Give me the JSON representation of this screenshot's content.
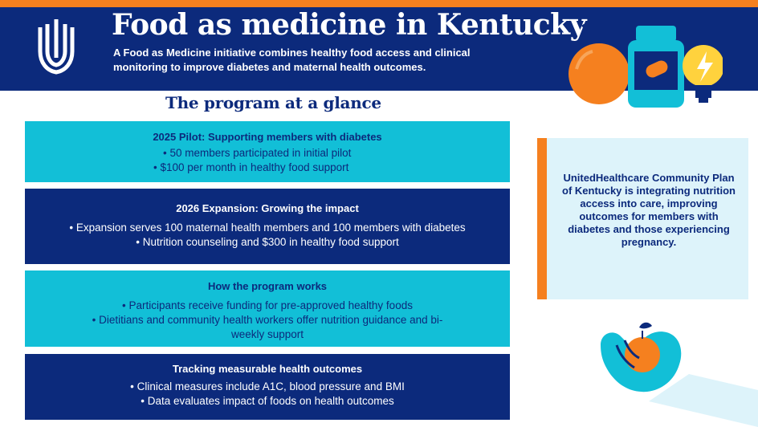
{
  "header": {
    "title": "Food as medicine in Kentucky",
    "subtitle": "A Food as Medicine initiative combines healthy food access and clinical monitoring to improve diabetes and maternal health outcomes.",
    "logo_icon": "uhc-logo-icon"
  },
  "section": {
    "heading": "The program at a glance"
  },
  "cards": [
    {
      "title": "2025 Pilot: Supporting members with diabetes",
      "bullets": [
        "50 members participated in initial pilot",
        "$100 per month in healthy food support"
      ]
    },
    {
      "title": "2026 Expansion: Growing the impact",
      "bullets": [
        "Expansion serves 100 maternal health members and 100 members with diabetes",
        "Nutrition counseling and $300 in healthy food support"
      ]
    },
    {
      "title": "How the program works",
      "bullets": [
        "Participants receive funding for pre-approved healthy foods",
        "Dietitians and community health workers offer nutrition guidance and bi-weekly support"
      ]
    },
    {
      "title": "Tracking measurable health outcomes",
      "bullets": [
        "Clinical measures include A1C, blood pressure and BMI",
        "Data evaluates impact of foods on health outcomes"
      ]
    }
  ],
  "sidebar": {
    "text": "UnitedHealthcare Community Plan of Kentucky is integrating nutrition access into care, improving outcomes for members with diabetes and those experiencing pregnancy."
  },
  "illustrations": {
    "top": [
      "apple-icon",
      "pill-bottle-icon",
      "lightbulb-icon"
    ],
    "bottom": "hand-holding-apple-icon"
  },
  "colors": {
    "navy": "#0c2a7c",
    "orange": "#f5801f",
    "cyan": "#12bfd7",
    "light_blue": "#ddf3fa"
  }
}
